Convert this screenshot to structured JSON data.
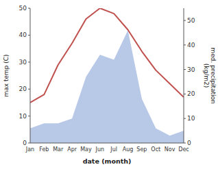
{
  "chart_data": {
    "type": "line",
    "x_label": "date (month)",
    "y_label": "max temp (C)",
    "y2_label": "med. precipitation\n(kg/m2)",
    "categories": [
      "Jan",
      "Feb",
      "Mar",
      "Apr",
      "May",
      "Jun",
      "Jul",
      "Aug",
      "Sep",
      "Oct",
      "Nov",
      "Dec"
    ],
    "series": [
      {
        "type": "line",
        "color": "#c0504d",
        "values": [
          15,
          18,
          29,
          37,
          46,
          50,
          48,
          42,
          34,
          27,
          22,
          17
        ]
      },
      {
        "type": "area",
        "color": "#b8c9e8",
        "axis": "y2",
        "values": [
          6,
          8,
          8,
          10,
          27,
          36,
          34,
          46,
          18,
          6,
          3,
          5
        ]
      }
    ],
    "ylim": [
      0,
      50
    ],
    "yticks": [
      0,
      10,
      20,
      30,
      40,
      50
    ],
    "y2lim": [
      0,
      55
    ],
    "y2ticks": [
      0,
      10,
      20,
      30,
      40,
      50
    ],
    "grid": false
  }
}
